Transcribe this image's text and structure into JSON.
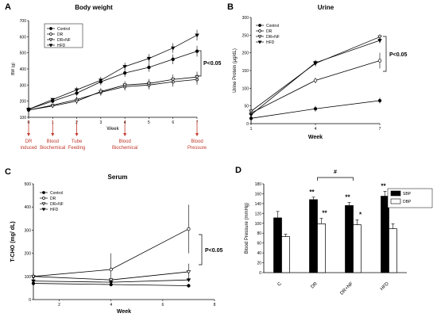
{
  "chart_data": [
    {
      "panel": "A",
      "type": "line",
      "title": "Body weight",
      "xlabel": "Week",
      "ylabel": "BW (g)",
      "ylim": [
        100,
        700
      ],
      "xlim": [
        0,
        7
      ],
      "x": [
        0,
        1,
        2,
        3,
        4,
        5,
        6,
        7
      ],
      "yticks": [
        "100",
        "200",
        "300",
        "400",
        "500",
        "600",
        "700"
      ],
      "xticks": [
        "0",
        "1",
        "2",
        "3",
        "4",
        "5",
        "6",
        "7"
      ],
      "series": [
        {
          "name": "Control",
          "marker": "filled-circle",
          "values": [
            150,
            200,
            250,
            320,
            375,
            410,
            460,
            510
          ]
        },
        {
          "name": "DR",
          "marker": "open-circle",
          "values": [
            145,
            175,
            210,
            255,
            290,
            300,
            320,
            335
          ]
        },
        {
          "name": "DR+NF",
          "marker": "open-triangle",
          "values": [
            145,
            170,
            200,
            260,
            300,
            310,
            335,
            350
          ]
        },
        {
          "name": "HFD",
          "marker": "filled-triangle",
          "values": [
            150,
            210,
            270,
            330,
            415,
            465,
            530,
            610
          ]
        }
      ],
      "significance": "P<0.05",
      "annotations": [
        {
          "week": 0,
          "text": "DR induced"
        },
        {
          "week": 1,
          "text": "Blood Biochemical"
        },
        {
          "week": 2,
          "text": "Tube Feeding"
        },
        {
          "week": 4,
          "text": "Blood Biochemical"
        },
        {
          "week": 7,
          "text": "Blood Pressure"
        }
      ],
      "legend_position": "top-left"
    },
    {
      "panel": "B",
      "type": "line",
      "title": "Urine",
      "xlabel": "Week",
      "ylabel": "Urine Protein (µg/dL)",
      "ylim": [
        0,
        300
      ],
      "xlim": [
        1,
        7
      ],
      "x": [
        1,
        4,
        7
      ],
      "yticks": [
        "0",
        "50",
        "100",
        "150",
        "200",
        "250",
        "300"
      ],
      "xticks": [
        "1",
        "4",
        "7"
      ],
      "series": [
        {
          "name": "Control",
          "marker": "filled-circle",
          "values": [
            15,
            42,
            65
          ]
        },
        {
          "name": "DR",
          "marker": "open-circle",
          "values": [
            30,
            122,
            178
          ]
        },
        {
          "name": "DR+NF",
          "marker": "open-triangle",
          "values": [
            35,
            170,
            245
          ]
        },
        {
          "name": "HFD",
          "marker": "filled-triangle",
          "values": [
            25,
            172,
            235
          ]
        }
      ],
      "significance": "P<0.05",
      "legend_position": "top-left"
    },
    {
      "panel": "C",
      "type": "line",
      "title": "Serum",
      "xlabel": "Week",
      "ylabel": "T-CHO (mg/ dL)",
      "ylim": [
        0,
        500
      ],
      "xlim": [
        1,
        8
      ],
      "x": [
        1,
        4,
        7
      ],
      "yticks": [
        "0",
        "100",
        "200",
        "300",
        "400",
        "500"
      ],
      "xticks": [
        "2",
        "4",
        "6",
        "8"
      ],
      "series": [
        {
          "name": "Control",
          "marker": "filled-circle",
          "values": [
            70,
            65,
            60
          ]
        },
        {
          "name": "DR",
          "marker": "open-circle",
          "values": [
            100,
            130,
            305
          ]
        },
        {
          "name": "DR+NF",
          "marker": "open-triangle",
          "values": [
            100,
            85,
            120
          ]
        },
        {
          "name": "HFD",
          "marker": "filled-triangle",
          "values": [
            80,
            75,
            85
          ]
        }
      ],
      "significance": "P<0.05",
      "legend_position": "top-left"
    },
    {
      "panel": "D",
      "type": "bar",
      "ylabel": "Blood Pressure (mmHg)",
      "ylim": [
        0,
        180
      ],
      "yticks": [
        "0",
        "20",
        "40",
        "60",
        "80",
        "100",
        "120",
        "140",
        "160",
        "180"
      ],
      "categories": [
        "C",
        "DR",
        "DR+NF",
        "HFD"
      ],
      "series": [
        {
          "name": "SBP",
          "color": "#000000",
          "values": [
            111,
            148,
            136,
            155
          ],
          "errors": [
            13,
            5,
            6,
            10
          ],
          "stars": [
            "",
            "**",
            "**",
            "**"
          ]
        },
        {
          "name": "DBP",
          "color": "#ffffff",
          "values": [
            73,
            99,
            97,
            89
          ],
          "errors": [
            5,
            11,
            10,
            10
          ],
          "stars": [
            "",
            "**",
            "*",
            ""
          ]
        }
      ],
      "bracket_label": "#",
      "legend_position": "top-right"
    }
  ],
  "labels": {
    "panel_a": "A",
    "panel_b": "B",
    "panel_c": "C",
    "panel_d": "D"
  }
}
